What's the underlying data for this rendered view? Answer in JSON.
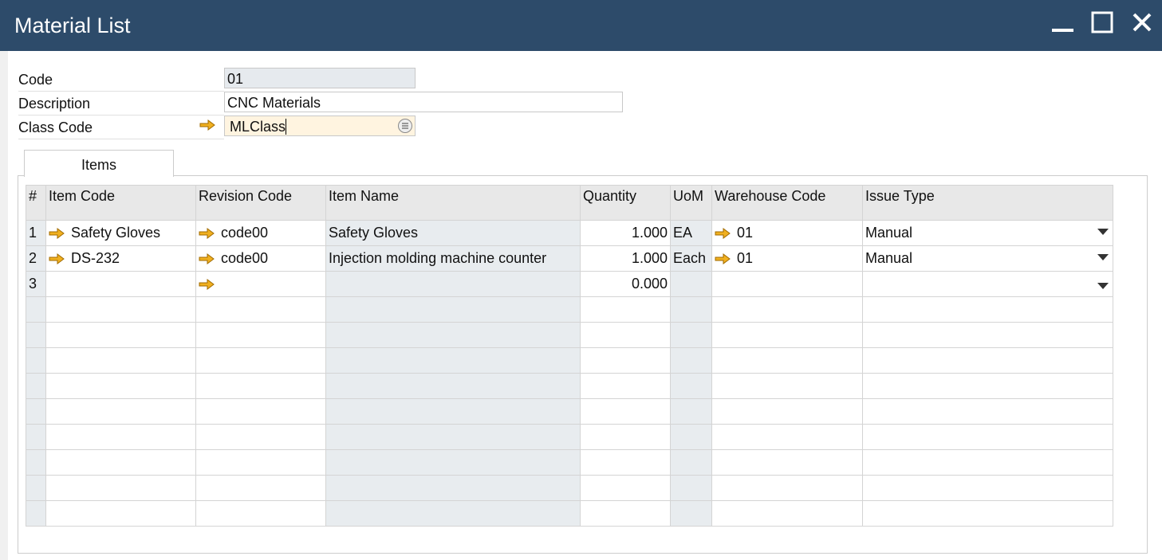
{
  "window": {
    "title": "Material List"
  },
  "form": {
    "code": {
      "label": "Code",
      "value": "01"
    },
    "description": {
      "label": "Description",
      "value": "CNC Materials"
    },
    "class_code": {
      "label": "Class Code",
      "value": "MLClass"
    }
  },
  "tabs": [
    {
      "label": "Items",
      "active": true
    }
  ],
  "table": {
    "columns": [
      "#",
      "Item Code",
      "Revision Code",
      "Item Name",
      "Quantity",
      "UoM",
      "Warehouse Code",
      "Issue Type"
    ],
    "rows": [
      {
        "n": "1",
        "item_code": "Safety Gloves",
        "revision": "code00",
        "item_name": "Safety Gloves",
        "qty": "1.000",
        "uom": "EA",
        "warehouse": "01",
        "issue_type": "Manual"
      },
      {
        "n": "2",
        "item_code": "DS-232",
        "revision": "code00",
        "item_name": "Injection molding machine counter",
        "qty": "1.000",
        "uom": "Each",
        "warehouse": "01",
        "issue_type": "Manual"
      },
      {
        "n": "3",
        "item_code": "",
        "revision": "",
        "item_name": "",
        "qty": "0.000",
        "uom": "",
        "warehouse": "",
        "issue_type": ""
      }
    ]
  },
  "colors": {
    "titlebar": "#2d4b6a",
    "arrow": "#e8a317",
    "focused_field": "#fff4e0",
    "readonly_field": "#e6eaee"
  }
}
